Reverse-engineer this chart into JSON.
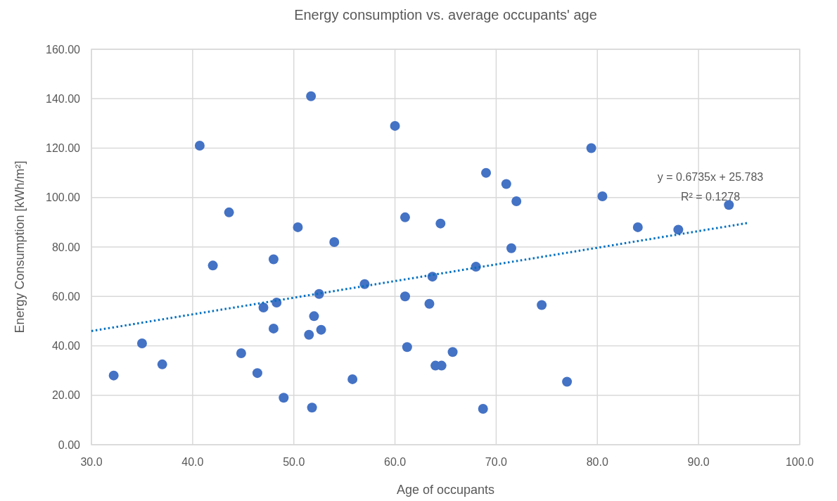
{
  "chart_data": {
    "type": "scatter",
    "title": "Energy consumption vs. average occupants' age",
    "xlabel": "Age of occupants",
    "ylabel": "Energy Consumption [kWh/m²]",
    "xlim": [
      30,
      100
    ],
    "xticks": [
      {
        "value": 30,
        "label": "30.0"
      },
      {
        "value": 40,
        "label": "40.0"
      },
      {
        "value": 50,
        "label": "50.0"
      },
      {
        "value": 60,
        "label": "60.0"
      },
      {
        "value": 70,
        "label": "70.0"
      },
      {
        "value": 80,
        "label": "80.0"
      },
      {
        "value": 90,
        "label": "90.0"
      },
      {
        "value": 100,
        "label": "100.0"
      }
    ],
    "ylim": [
      0,
      160
    ],
    "yticks": [
      {
        "value": 0,
        "label": "0.00"
      },
      {
        "value": 20,
        "label": "20.00"
      },
      {
        "value": 40,
        "label": "40.00"
      },
      {
        "value": 60,
        "label": "60.00"
      },
      {
        "value": 80,
        "label": "80.00"
      },
      {
        "value": 100,
        "label": "100.00"
      },
      {
        "value": 120,
        "label": "120.00"
      },
      {
        "value": 140,
        "label": "140.00"
      },
      {
        "value": 160,
        "label": "160.00"
      }
    ],
    "grid": true,
    "marker": "circle",
    "series": [
      {
        "color": "#4472c4",
        "x": [
          32.2,
          35,
          37,
          40.7,
          42,
          43.6,
          44.8,
          46.4,
          47,
          48,
          48,
          48.3,
          49,
          50.4,
          51.5,
          51.7,
          51.8,
          52,
          52.5,
          52.7,
          54,
          55.8,
          57,
          60,
          61,
          61,
          61.2,
          63.4,
          63.7,
          64,
          64.6,
          64.5,
          65.7,
          68,
          68.7,
          69,
          71,
          71.5,
          72,
          74.5,
          77,
          79.4,
          80.5,
          84,
          88,
          93
        ],
        "values": [
          28,
          41,
          32.5,
          121,
          72.5,
          94,
          37,
          29,
          55.5,
          75,
          47,
          57.5,
          19,
          88,
          44.5,
          141,
          15,
          52,
          61,
          46.5,
          82,
          26.5,
          65,
          129,
          60,
          92,
          39.5,
          57,
          68,
          32,
          32,
          89.5,
          37.5,
          72,
          14.5,
          110,
          105.5,
          79.5,
          98.5,
          56.5,
          25.5,
          120,
          100.5,
          88,
          87,
          97
        ]
      },
      {
        "type": "line",
        "color": "#0070c0",
        "line_style": "dotted",
        "marker": "none",
        "x": [
          30,
          95
        ],
        "values": [
          46,
          89.8
        ]
      }
    ],
    "annotations": [
      "y = 0.6735x + 25.783",
      "R² = 0.1278"
    ]
  }
}
